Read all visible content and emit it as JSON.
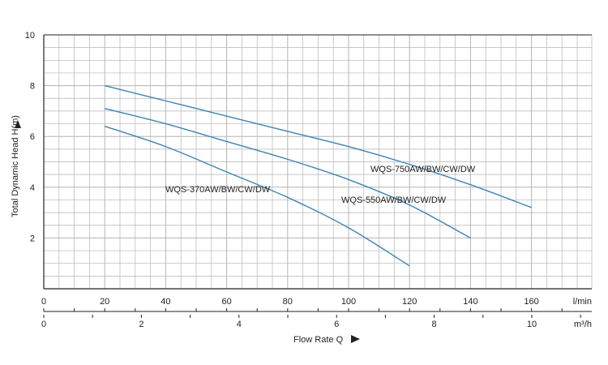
{
  "chart_data": {
    "type": "line",
    "xlabel": "Flow Rate Q",
    "ylabel": "Total Dynamic Head H(m)",
    "ylim": [
      0,
      10
    ],
    "yticks": [
      "2",
      "4",
      "6",
      "8",
      "10"
    ],
    "xlim_lpm": [
      0,
      180
    ],
    "xticks_lpm": [
      "0",
      "20",
      "40",
      "60",
      "80",
      "100",
      "120",
      "140",
      "160"
    ],
    "x_unit_lpm": "l/min",
    "xticks_m3h": [
      "0",
      "2",
      "4",
      "6",
      "8",
      "10"
    ],
    "x_unit_m3h": "m³/h",
    "grid": true,
    "colors": {
      "curve": "#3a86b4",
      "grid": "#b5b5b5",
      "axis": "#222222"
    },
    "series": [
      {
        "name": "WQS-750AW/BW/CW/DW",
        "x": [
          20,
          40,
          60,
          80,
          100,
          120,
          140,
          160
        ],
        "y": [
          8.0,
          7.4,
          6.8,
          6.2,
          5.6,
          4.9,
          4.1,
          3.2
        ]
      },
      {
        "name": "WQS-550AW/BW/CW/DW",
        "x": [
          20,
          40,
          60,
          80,
          100,
          120,
          140
        ],
        "y": [
          7.1,
          6.5,
          5.8,
          5.1,
          4.3,
          3.3,
          2.0
        ]
      },
      {
        "name": "WQS-370AW/BW/CW/DW",
        "x": [
          20,
          40,
          60,
          80,
          100,
          120
        ],
        "y": [
          6.4,
          5.6,
          4.6,
          3.6,
          2.4,
          0.9
        ]
      }
    ]
  }
}
